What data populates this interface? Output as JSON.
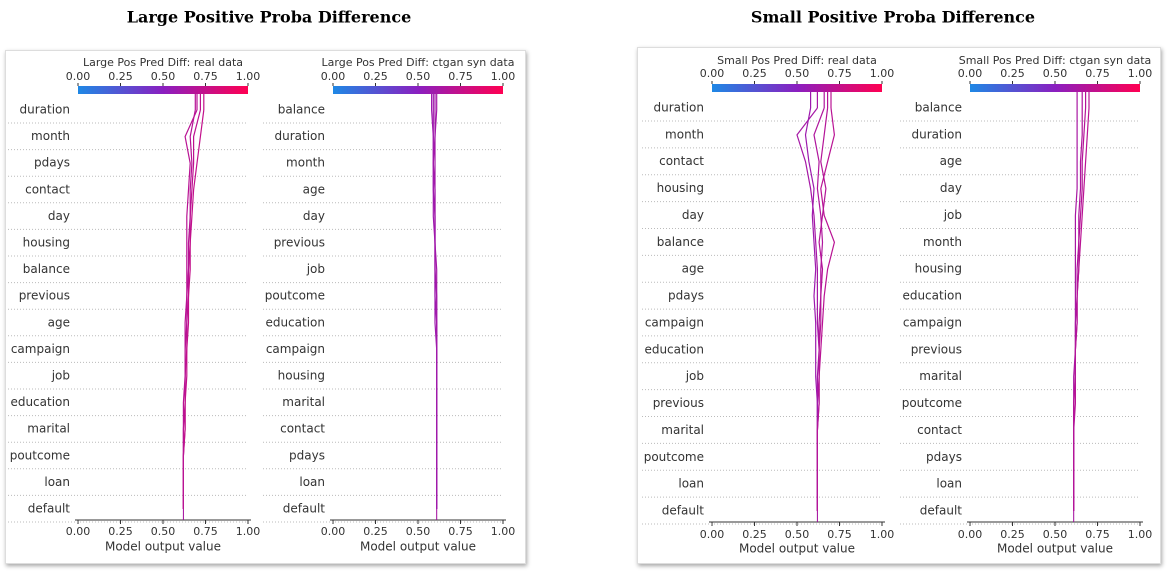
{
  "headings": [
    "Large Positive Proba Difference",
    "Small Positive Proba Difference"
  ],
  "chart_data": [
    {
      "type": "decision",
      "title": "Large Pos Pred Diff: real data",
      "xlabel": "Model output value",
      "categories": [
        "duration",
        "month",
        "pdays",
        "contact",
        "day",
        "housing",
        "balance",
        "previous",
        "age",
        "campaign",
        "job",
        "education",
        "marital",
        "poutcome",
        "loan",
        "default"
      ],
      "base_value": 0.62,
      "xlim": [
        0,
        1
      ],
      "xticks": [
        {
          "value": 0,
          "label": "0.00"
        },
        {
          "value": 0.25,
          "label": "0.25"
        },
        {
          "value": 0.5,
          "label": "0.50"
        },
        {
          "value": 0.75,
          "label": "0.75"
        },
        {
          "value": 1,
          "label": "1.00"
        }
      ],
      "lines": [
        [
          0.72,
          0.68,
          0.68,
          0.67,
          0.66,
          0.66,
          0.65,
          0.65,
          0.64,
          0.64,
          0.63,
          0.63,
          0.63,
          0.62,
          0.62,
          0.62
        ],
        [
          0.69,
          0.66,
          0.67,
          0.66,
          0.66,
          0.65,
          0.65,
          0.64,
          0.64,
          0.63,
          0.63,
          0.63,
          0.62,
          0.62,
          0.62,
          0.62
        ],
        [
          0.74,
          0.72,
          0.7,
          0.68,
          0.67,
          0.66,
          0.66,
          0.65,
          0.65,
          0.64,
          0.64,
          0.63,
          0.63,
          0.62,
          0.62,
          0.62
        ],
        [
          0.7,
          0.63,
          0.66,
          0.65,
          0.64,
          0.64,
          0.64,
          0.64,
          0.63,
          0.63,
          0.63,
          0.62,
          0.62,
          0.62,
          0.62,
          0.62
        ]
      ]
    },
    {
      "type": "decision",
      "title": "Large Pos Pred Diff: ctgan syn data",
      "xlabel": "Model output value",
      "categories": [
        "balance",
        "duration",
        "month",
        "age",
        "day",
        "previous",
        "job",
        "poutcome",
        "education",
        "campaign",
        "housing",
        "marital",
        "contact",
        "pdays",
        "loan",
        "default"
      ],
      "base_value": 0.61,
      "xlim": [
        0,
        1
      ],
      "xticks": [
        {
          "value": 0,
          "label": "0.00"
        },
        {
          "value": 0.25,
          "label": "0.25"
        },
        {
          "value": 0.5,
          "label": "0.50"
        },
        {
          "value": 0.75,
          "label": "0.75"
        },
        {
          "value": 1,
          "label": "1.00"
        }
      ],
      "lines": [
        [
          0.59,
          0.59,
          0.59,
          0.59,
          0.6,
          0.6,
          0.6,
          0.6,
          0.61,
          0.61,
          0.61,
          0.61,
          0.61,
          0.61,
          0.61,
          0.61
        ],
        [
          0.61,
          0.6,
          0.6,
          0.6,
          0.6,
          0.6,
          0.61,
          0.61,
          0.61,
          0.61,
          0.61,
          0.61,
          0.61,
          0.61,
          0.61,
          0.61
        ],
        [
          0.58,
          0.59,
          0.59,
          0.59,
          0.59,
          0.6,
          0.6,
          0.6,
          0.6,
          0.61,
          0.61,
          0.61,
          0.61,
          0.61,
          0.61,
          0.61
        ],
        [
          0.6,
          0.6,
          0.59,
          0.6,
          0.6,
          0.6,
          0.6,
          0.61,
          0.61,
          0.61,
          0.61,
          0.61,
          0.61,
          0.61,
          0.61,
          0.61
        ]
      ]
    },
    {
      "type": "decision",
      "title": "Small Pos Pred Diff: real data",
      "xlabel": "Model output value",
      "categories": [
        "duration",
        "month",
        "contact",
        "housing",
        "day",
        "balance",
        "age",
        "pdays",
        "campaign",
        "education",
        "job",
        "previous",
        "marital",
        "poutcome",
        "loan",
        "default"
      ],
      "base_value": 0.62,
      "xlim": [
        0,
        1
      ],
      "xticks": [
        {
          "value": 0,
          "label": "0.00"
        },
        {
          "value": 0.25,
          "label": "0.25"
        },
        {
          "value": 0.5,
          "label": "0.50"
        },
        {
          "value": 0.75,
          "label": "0.75"
        },
        {
          "value": 1,
          "label": "1.00"
        }
      ],
      "lines": [
        [
          0.62,
          0.5,
          0.55,
          0.58,
          0.6,
          0.61,
          0.62,
          0.62,
          0.62,
          0.63,
          0.62,
          0.62,
          0.62,
          0.62,
          0.62,
          0.62
        ],
        [
          0.7,
          0.72,
          0.68,
          0.64,
          0.66,
          0.72,
          0.68,
          0.66,
          0.65,
          0.64,
          0.63,
          0.63,
          0.62,
          0.62,
          0.62,
          0.62
        ],
        [
          0.66,
          0.6,
          0.63,
          0.62,
          0.64,
          0.65,
          0.64,
          0.64,
          0.63,
          0.63,
          0.63,
          0.62,
          0.62,
          0.62,
          0.62,
          0.62
        ],
        [
          0.58,
          0.55,
          0.57,
          0.6,
          0.59,
          0.6,
          0.61,
          0.6,
          0.61,
          0.61,
          0.61,
          0.62,
          0.62,
          0.62,
          0.62,
          0.62
        ],
        [
          0.68,
          0.66,
          0.64,
          0.67,
          0.65,
          0.63,
          0.65,
          0.64,
          0.64,
          0.63,
          0.63,
          0.63,
          0.62,
          0.62,
          0.62,
          0.62
        ]
      ]
    },
    {
      "type": "decision",
      "title": "Small Pos Pred Diff: ctgan syn data",
      "xlabel": "Model output value",
      "categories": [
        "balance",
        "duration",
        "age",
        "day",
        "job",
        "month",
        "housing",
        "education",
        "campaign",
        "previous",
        "marital",
        "poutcome",
        "contact",
        "pdays",
        "loan",
        "default"
      ],
      "base_value": 0.61,
      "xlim": [
        0,
        1
      ],
      "xticks": [
        {
          "value": 0,
          "label": "0.00"
        },
        {
          "value": 0.25,
          "label": "0.25"
        },
        {
          "value": 0.5,
          "label": "0.50"
        },
        {
          "value": 0.75,
          "label": "0.75"
        },
        {
          "value": 1,
          "label": "1.00"
        }
      ],
      "lines": [
        [
          0.66,
          0.66,
          0.65,
          0.65,
          0.64,
          0.64,
          0.63,
          0.63,
          0.62,
          0.62,
          0.62,
          0.61,
          0.61,
          0.61,
          0.61,
          0.61
        ],
        [
          0.7,
          0.69,
          0.68,
          0.67,
          0.66,
          0.65,
          0.64,
          0.63,
          0.63,
          0.62,
          0.62,
          0.62,
          0.61,
          0.61,
          0.61,
          0.61
        ],
        [
          0.63,
          0.63,
          0.63,
          0.63,
          0.62,
          0.62,
          0.62,
          0.62,
          0.62,
          0.62,
          0.61,
          0.61,
          0.61,
          0.61,
          0.61,
          0.61
        ],
        [
          0.68,
          0.67,
          0.66,
          0.66,
          0.65,
          0.64,
          0.64,
          0.63,
          0.63,
          0.62,
          0.62,
          0.61,
          0.61,
          0.61,
          0.61,
          0.61
        ]
      ]
    }
  ]
}
